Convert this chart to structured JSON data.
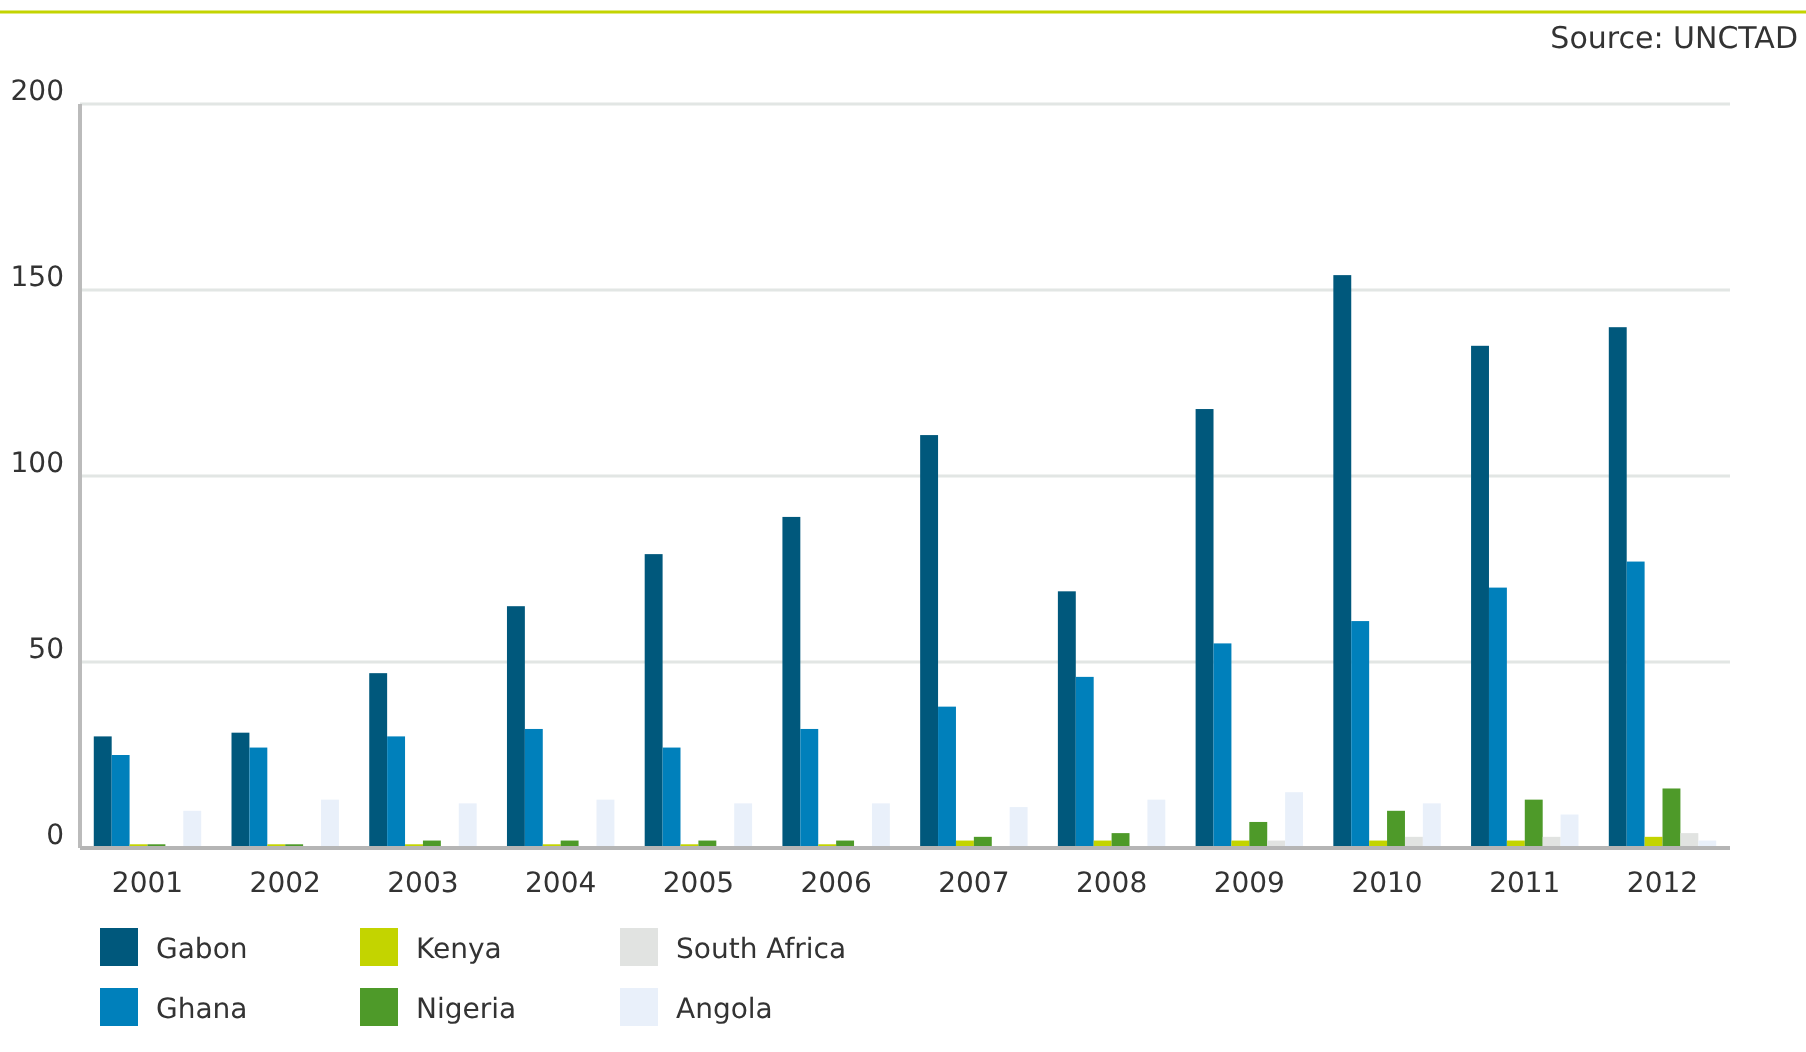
{
  "chart_data": {
    "type": "bar",
    "annotations": [
      "Source: UNCTAD"
    ],
    "categories": [
      "2001",
      "2002",
      "2003",
      "2004",
      "2005",
      "2006",
      "2007",
      "2008",
      "2009",
      "2010",
      "2011",
      "2012"
    ],
    "series": [
      {
        "name": "Gabon",
        "color": "#00587c",
        "values": [
          30,
          31,
          47,
          65,
          79,
          89,
          111,
          69,
          118,
          154,
          135,
          140
        ]
      },
      {
        "name": "Ghana",
        "color": "#0080bb",
        "values": [
          25,
          27,
          30,
          32,
          27,
          32,
          38,
          46,
          55,
          61,
          70,
          77
        ]
      },
      {
        "name": "Kenya",
        "color": "#c3d400",
        "values": [
          1,
          1,
          1,
          1,
          1,
          1,
          2,
          2,
          2,
          2,
          2,
          3
        ]
      },
      {
        "name": "Nigeria",
        "color": "#4e9a29",
        "values": [
          1,
          1,
          2,
          2,
          2,
          2,
          3,
          4,
          7,
          10,
          13,
          16
        ]
      },
      {
        "name": "South Africa",
        "color": "#e1e3e1",
        "values": [
          0,
          0,
          0,
          0,
          0,
          0,
          null,
          null,
          2,
          3,
          3,
          4
        ]
      },
      {
        "name": "Angola",
        "color": "#e9f0fa",
        "values": [
          10,
          13,
          12,
          13,
          12,
          12,
          11,
          13,
          15,
          12,
          9,
          2
        ]
      }
    ],
    "ylim": [
      0,
      200
    ],
    "yticks": [
      0,
      50,
      100,
      150,
      200
    ],
    "grid": "y",
    "legend": "bottom left"
  }
}
